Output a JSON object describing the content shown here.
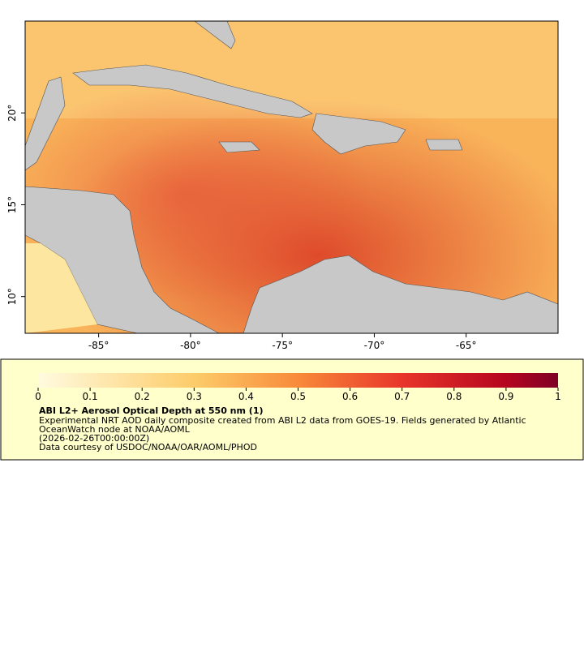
{
  "map": {
    "lon_range": [
      -89,
      -60
    ],
    "lat_range": [
      8,
      25
    ],
    "lon_ticks": [
      {
        "value": -85,
        "label": "-85°"
      },
      {
        "value": -80,
        "label": "-80°"
      },
      {
        "value": -75,
        "label": "-75°"
      },
      {
        "value": -70,
        "label": "-70°"
      },
      {
        "value": -65,
        "label": "-65°"
      }
    ],
    "lat_ticks": [
      {
        "value": 10,
        "label": "10°"
      },
      {
        "value": 15,
        "label": "15°"
      },
      {
        "value": 20,
        "label": "20°"
      }
    ]
  },
  "colorbar": {
    "range": [
      0,
      1
    ],
    "ticks": [
      0,
      0.1,
      0.2,
      0.3,
      0.4,
      0.5,
      0.6,
      0.7,
      0.8,
      0.9,
      1
    ]
  },
  "legend": {
    "title": "ABI L2+ Aerosol Optical Depth at 550 nm (1)",
    "description_lines": [
      "Experimental NRT AOD daily composite created from ABI L2 data from GOES-19. Fields generated by Atlantic",
      "OceanWatch node at NOAA/AOML"
    ],
    "time": "(2026-02-26T00:00:00Z)",
    "credit": "Data courtesy of USDOC/NOAA/OAR/AOML/PHOD"
  }
}
